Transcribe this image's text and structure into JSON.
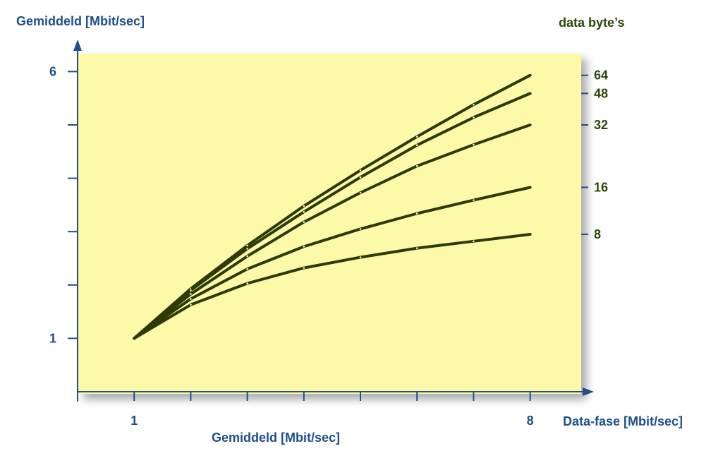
{
  "chart_data": {
    "type": "line",
    "y_title": "Gemiddeld [Mbit/sec]",
    "right_title": "data byte’s",
    "x_title": "Data-fase [Mbit/sec]",
    "x_subtitle": "Gemiddeld [Mbit/sec]",
    "x_ticks": [
      {
        "value": 1,
        "label": "1"
      },
      {
        "value": 8,
        "label": "8"
      }
    ],
    "y_ticks": [
      {
        "value": 1,
        "label": "1"
      },
      {
        "value": 6,
        "label": "6"
      }
    ],
    "xlim": [
      0,
      8.6
    ],
    "ylim": [
      0,
      6.6
    ],
    "x": [
      1,
      2,
      3,
      4,
      5,
      6,
      7,
      8
    ],
    "series": [
      {
        "name": "64",
        "values": [
          1.0,
          1.93,
          2.74,
          3.48,
          4.15,
          4.78,
          5.38,
          5.93
        ]
      },
      {
        "name": "48",
        "values": [
          1.0,
          1.9,
          2.68,
          3.37,
          4.02,
          4.62,
          5.14,
          5.59
        ]
      },
      {
        "name": "32",
        "values": [
          1.0,
          1.83,
          2.54,
          3.18,
          3.73,
          4.23,
          4.63,
          5.0
        ]
      },
      {
        "name": "16",
        "values": [
          1.0,
          1.74,
          2.3,
          2.72,
          3.05,
          3.34,
          3.59,
          3.83
        ]
      },
      {
        "name": "8",
        "values": [
          1.0,
          1.63,
          2.03,
          2.32,
          2.52,
          2.69,
          2.82,
          2.95
        ]
      }
    ],
    "grid": false,
    "colors": {
      "plot_background": "#fcfaa8",
      "line": "#2d3a06",
      "axis": "#1e4f8c",
      "axis_label": "#1e4f8c",
      "series_label": "#2b4a0a"
    }
  }
}
